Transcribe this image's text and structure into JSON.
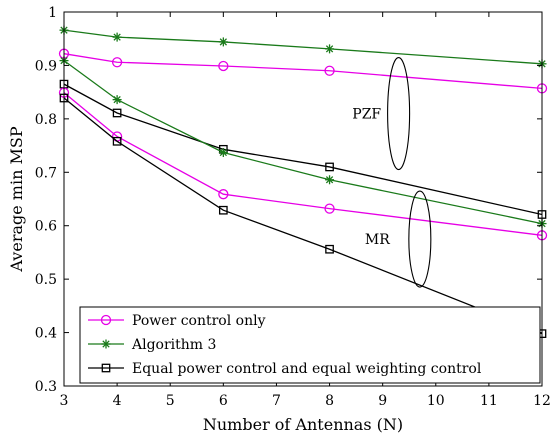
{
  "chart_data": {
    "type": "line",
    "xlabel": "Number of Antennas (N)",
    "ylabel": "Average min MSP",
    "xlim": [
      3,
      12
    ],
    "ylim": [
      0.3,
      1.0
    ],
    "xticks": [
      3,
      4,
      5,
      6,
      7,
      8,
      9,
      10,
      11,
      12
    ],
    "yticks": [
      0.3,
      0.4,
      0.5,
      0.6,
      0.7,
      0.8,
      0.9,
      1.0
    ],
    "xtick_labels": [
      "3",
      "4",
      "5",
      "6",
      "7",
      "8",
      "9",
      "10",
      "11",
      "12"
    ],
    "ytick_labels": [
      "0.3",
      "0.4",
      "0.5",
      "0.6",
      "0.7",
      "0.8",
      "0.9",
      "1"
    ],
    "grid": false,
    "legend_position": "bottom-left",
    "annotations": [
      {
        "text": "PZF",
        "x": 8.7,
        "y": 0.81
      },
      {
        "text": "MR",
        "x": 8.9,
        "y": 0.575
      }
    ],
    "series": [
      {
        "name": "Power control only",
        "group": "PZF",
        "color": "#e600e6",
        "marker": "circle",
        "x": [
          3,
          4,
          6,
          8,
          12
        ],
        "y": [
          0.922,
          0.906,
          0.899,
          0.89,
          0.857
        ]
      },
      {
        "name": "Algorithm 3",
        "group": "PZF",
        "color": "#1a7a1a",
        "marker": "star",
        "x": [
          3,
          4,
          6,
          8,
          12
        ],
        "y": [
          0.966,
          0.953,
          0.944,
          0.931,
          0.903
        ]
      },
      {
        "name": "Equal power control and equal weighting control",
        "group": "PZF",
        "color": "#000000",
        "marker": "square",
        "x": [
          3,
          4,
          6,
          8,
          12
        ],
        "y": [
          0.865,
          0.811,
          0.743,
          0.71,
          0.621
        ]
      },
      {
        "name": "Power control only",
        "group": "MR",
        "color": "#e600e6",
        "marker": "circle",
        "x": [
          3,
          4,
          6,
          8,
          12
        ],
        "y": [
          0.849,
          0.767,
          0.659,
          0.632,
          0.582
        ]
      },
      {
        "name": "Algorithm 3",
        "group": "MR",
        "color": "#1a7a1a",
        "marker": "star",
        "x": [
          3,
          4,
          6,
          8,
          12
        ],
        "y": [
          0.909,
          0.836,
          0.737,
          0.686,
          0.604
        ]
      },
      {
        "name": "Equal power control and equal weighting control",
        "group": "MR",
        "color": "#000000",
        "marker": "square",
        "x": [
          3,
          4,
          6,
          8,
          12
        ],
        "y": [
          0.839,
          0.758,
          0.629,
          0.556,
          0.398
        ]
      }
    ],
    "legend": [
      {
        "label": "Power control only",
        "color": "#e600e6",
        "marker": "circle"
      },
      {
        "label": "Algorithm 3",
        "color": "#1a7a1a",
        "marker": "star"
      },
      {
        "label": "Equal power control and equal weighting control",
        "color": "#000000",
        "marker": "square"
      }
    ]
  }
}
